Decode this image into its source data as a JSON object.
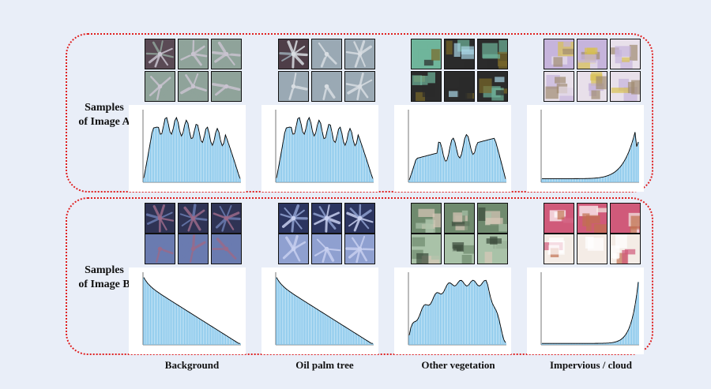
{
  "rows": [
    {
      "id": "A",
      "label_line1": "Samples",
      "label_line2": "of Image A"
    },
    {
      "id": "B",
      "label_line1": "Samples",
      "label_line2": "of Image B"
    }
  ],
  "classes": [
    "Background",
    "Oil palm tree",
    "Other vegetation",
    "Impervious / cloud"
  ],
  "colors": {
    "box_border": "#e02020",
    "bar": "#7ec3ea",
    "curve": "#000000",
    "page_bg": "#e9eef8"
  }
}
